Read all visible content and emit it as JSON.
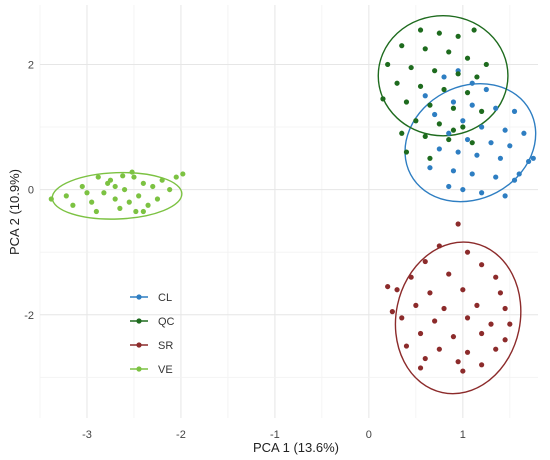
{
  "chart_data": {
    "type": "scatter",
    "title": "",
    "xlabel": "PCA 1 (13.6%)",
    "ylabel": "PCA 2 (10.9%)",
    "xlim": [
      -3.5,
      1.8
    ],
    "ylim": [
      -3.65,
      2.95
    ],
    "x_ticks": [
      -3,
      -2,
      -1,
      0,
      1
    ],
    "y_ticks": [
      -2,
      0,
      2
    ],
    "grid": true,
    "legend_position": "bottom-left",
    "series": [
      {
        "name": "CL",
        "color": "#2E7EC2",
        "ellipse": {
          "cx": 1.08,
          "cy": 0.75,
          "rx": 0.72,
          "ry": 0.9,
          "rotation_deg": -28
        },
        "points": [
          [
            0.8,
            1.8
          ],
          [
            0.95,
            1.9
          ],
          [
            1.1,
            1.7
          ],
          [
            1.25,
            1.6
          ],
          [
            0.6,
            1.5
          ],
          [
            0.9,
            1.4
          ],
          [
            1.1,
            1.35
          ],
          [
            1.35,
            1.3
          ],
          [
            1.55,
            1.25
          ],
          [
            0.7,
            1.2
          ],
          [
            1.0,
            1.1
          ],
          [
            1.2,
            1.0
          ],
          [
            1.45,
            0.95
          ],
          [
            1.65,
            0.9
          ],
          [
            0.85,
            0.9
          ],
          [
            1.05,
            0.8
          ],
          [
            1.3,
            0.75
          ],
          [
            1.5,
            0.7
          ],
          [
            0.75,
            0.65
          ],
          [
            0.95,
            0.6
          ],
          [
            1.15,
            0.55
          ],
          [
            1.4,
            0.5
          ],
          [
            1.7,
            0.45
          ],
          [
            0.65,
            0.35
          ],
          [
            0.9,
            0.3
          ],
          [
            1.1,
            0.25
          ],
          [
            1.35,
            0.2
          ],
          [
            1.55,
            0.15
          ],
          [
            0.85,
            0.05
          ],
          [
            1.0,
            0.0
          ],
          [
            1.2,
            -0.05
          ],
          [
            1.45,
            -0.1
          ],
          [
            1.75,
            0.5
          ],
          [
            1.6,
            0.25
          ]
        ]
      },
      {
        "name": "QC",
        "color": "#1E6B1E",
        "ellipse": {
          "cx": 0.79,
          "cy": 1.82,
          "rx": 0.69,
          "ry": 0.96,
          "rotation_deg": 0
        },
        "points": [
          [
            0.55,
            2.55
          ],
          [
            0.75,
            2.5
          ],
          [
            0.95,
            2.45
          ],
          [
            1.12,
            2.55
          ],
          [
            0.35,
            2.3
          ],
          [
            0.6,
            2.25
          ],
          [
            0.85,
            2.2
          ],
          [
            1.05,
            2.1
          ],
          [
            1.25,
            2.0
          ],
          [
            0.2,
            2.0
          ],
          [
            0.45,
            1.95
          ],
          [
            0.7,
            1.9
          ],
          [
            0.95,
            1.85
          ],
          [
            1.15,
            1.8
          ],
          [
            0.3,
            1.7
          ],
          [
            0.55,
            1.65
          ],
          [
            0.8,
            1.6
          ],
          [
            1.05,
            1.55
          ],
          [
            0.15,
            1.45
          ],
          [
            0.4,
            1.4
          ],
          [
            0.65,
            1.35
          ],
          [
            0.9,
            1.3
          ],
          [
            1.2,
            1.25
          ],
          [
            0.5,
            1.1
          ],
          [
            0.75,
            1.05
          ],
          [
            1.0,
            1.0
          ],
          [
            0.35,
            0.9
          ],
          [
            0.6,
            0.85
          ],
          [
            0.85,
            0.8
          ],
          [
            1.1,
            0.75
          ],
          [
            0.4,
            0.6
          ],
          [
            0.65,
            0.5
          ],
          [
            0.9,
            0.95
          ]
        ]
      },
      {
        "name": "SR",
        "color": "#8C2B2B",
        "ellipse": {
          "cx": 0.95,
          "cy": -2.05,
          "rx": 0.66,
          "ry": 1.22,
          "rotation_deg": 12
        },
        "points": [
          [
            0.95,
            -0.55
          ],
          [
            0.75,
            -0.9
          ],
          [
            1.05,
            -1.0
          ],
          [
            0.6,
            -1.15
          ],
          [
            1.2,
            -1.2
          ],
          [
            0.45,
            -1.4
          ],
          [
            0.85,
            -1.35
          ],
          [
            1.35,
            -1.4
          ],
          [
            0.3,
            -1.6
          ],
          [
            0.65,
            -1.65
          ],
          [
            1.0,
            -1.6
          ],
          [
            1.4,
            -1.65
          ],
          [
            0.5,
            -1.85
          ],
          [
            0.8,
            -1.9
          ],
          [
            1.15,
            -1.85
          ],
          [
            1.45,
            -1.9
          ],
          [
            0.35,
            -2.05
          ],
          [
            0.7,
            -2.1
          ],
          [
            1.05,
            -2.05
          ],
          [
            1.3,
            -2.15
          ],
          [
            0.55,
            -2.3
          ],
          [
            0.9,
            -2.35
          ],
          [
            1.2,
            -2.3
          ],
          [
            1.45,
            -2.4
          ],
          [
            0.4,
            -2.5
          ],
          [
            0.75,
            -2.55
          ],
          [
            1.05,
            -2.6
          ],
          [
            1.35,
            -2.55
          ],
          [
            0.6,
            -2.7
          ],
          [
            0.95,
            -2.75
          ],
          [
            1.2,
            -2.8
          ],
          [
            0.25,
            -1.95
          ],
          [
            0.55,
            -2.85
          ],
          [
            1.0,
            -2.9
          ],
          [
            1.5,
            -2.15
          ],
          [
            0.2,
            -1.55
          ]
        ]
      },
      {
        "name": "VE",
        "color": "#7CC242",
        "ellipse": {
          "cx": -2.68,
          "cy": -0.1,
          "rx": 0.69,
          "ry": 0.37,
          "rotation_deg": -2
        },
        "points": [
          [
            -3.38,
            -0.15
          ],
          [
            -3.22,
            -0.1
          ],
          [
            -3.15,
            -0.25
          ],
          [
            -3.05,
            0.05
          ],
          [
            -2.95,
            -0.2
          ],
          [
            -2.9,
            -0.35
          ],
          [
            -2.82,
            -0.05
          ],
          [
            -2.75,
            0.15
          ],
          [
            -2.7,
            -0.15
          ],
          [
            -2.65,
            -0.3
          ],
          [
            -2.6,
            0.0
          ],
          [
            -2.55,
            -0.2
          ],
          [
            -2.5,
            0.2
          ],
          [
            -2.45,
            -0.1
          ],
          [
            -2.4,
            0.1
          ],
          [
            -2.35,
            -0.25
          ],
          [
            -2.3,
            0.05
          ],
          [
            -2.25,
            -0.15
          ],
          [
            -2.2,
            0.15
          ],
          [
            -2.12,
            0.0
          ],
          [
            -2.05,
            0.2
          ],
          [
            -1.98,
            0.25
          ],
          [
            -2.78,
            0.1
          ],
          [
            -2.62,
            0.22
          ],
          [
            -2.48,
            -0.35
          ],
          [
            -3.0,
            -0.05
          ],
          [
            -2.88,
            0.2
          ],
          [
            -2.52,
            0.28
          ],
          [
            -2.7,
            0.05
          ],
          [
            -2.4,
            -0.35
          ]
        ]
      }
    ]
  }
}
